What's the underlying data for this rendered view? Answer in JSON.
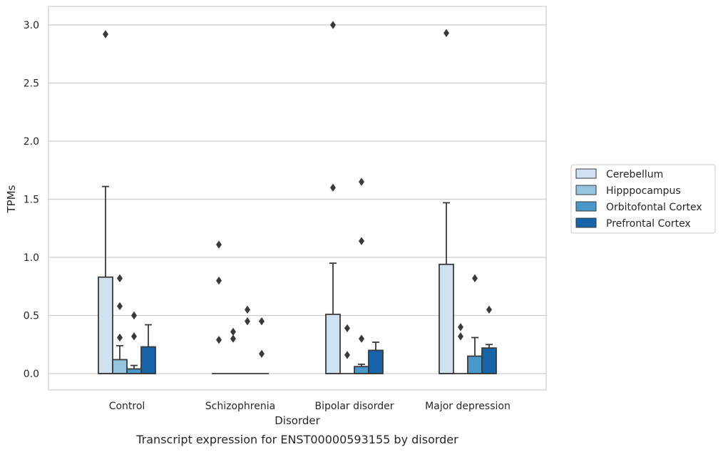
{
  "chart_data": {
    "type": "box",
    "title": "",
    "caption": "Transcript expression for ENST00000593155 by disorder",
    "xlabel": "Disorder",
    "ylabel": "TPMs",
    "ylim": [
      -0.15,
      3.15
    ],
    "yticks": [
      0.0,
      0.5,
      1.0,
      1.5,
      2.0,
      2.5,
      3.0
    ],
    "ytick_labels": [
      "0.0",
      "0.5",
      "1.0",
      "1.5",
      "2.0",
      "2.5",
      "3.0"
    ],
    "categories": [
      "Control",
      "Schizophrenia",
      "Bipolar disorder",
      "Major depression"
    ],
    "grid": "horizontal",
    "legend_position": "right",
    "series": [
      {
        "name": "Cerebellum",
        "color": "#d0e1f2",
        "boxes": [
          {
            "q1": 0.0,
            "median": 0.0,
            "q3": 0.83,
            "whisker_low": 0.0,
            "whisker_high": 1.61,
            "outliers": [
              2.92
            ]
          },
          {
            "q1": 0.0,
            "median": 0.0,
            "q3": 0.0,
            "whisker_low": 0.0,
            "whisker_high": 0.0,
            "outliers": [
              0.29,
              0.8,
              1.11
            ]
          },
          {
            "q1": 0.0,
            "median": 0.0,
            "q3": 0.51,
            "whisker_low": 0.0,
            "whisker_high": 0.95,
            "outliers": [
              1.6,
              3.0
            ]
          },
          {
            "q1": 0.0,
            "median": 0.0,
            "q3": 0.94,
            "whisker_low": 0.0,
            "whisker_high": 1.47,
            "outliers": [
              2.93
            ]
          }
        ]
      },
      {
        "name": "Hipppocampus",
        "color": "#94c4df",
        "boxes": [
          {
            "q1": 0.0,
            "median": 0.0,
            "q3": 0.12,
            "whisker_low": 0.0,
            "whisker_high": 0.24,
            "outliers": [
              0.31,
              0.58,
              0.82
            ]
          },
          {
            "q1": 0.0,
            "median": 0.0,
            "q3": 0.0,
            "whisker_low": 0.0,
            "whisker_high": 0.0,
            "outliers": [
              0.3,
              0.36
            ]
          },
          {
            "q1": 0.0,
            "median": 0.0,
            "q3": 0.0,
            "whisker_low": 0.0,
            "whisker_high": 0.0,
            "outliers": [
              0.16,
              0.39
            ]
          },
          {
            "q1": 0.0,
            "median": 0.0,
            "q3": 0.0,
            "whisker_low": 0.0,
            "whisker_high": 0.0,
            "outliers": [
              0.32,
              0.4
            ]
          }
        ]
      },
      {
        "name": "Orbitofontal Cortex",
        "color": "#4a98c9",
        "boxes": [
          {
            "q1": 0.0,
            "median": 0.0,
            "q3": 0.04,
            "whisker_low": 0.0,
            "whisker_high": 0.07,
            "outliers": [
              0.32,
              0.5
            ]
          },
          {
            "q1": 0.0,
            "median": 0.0,
            "q3": 0.0,
            "whisker_low": 0.0,
            "whisker_high": 0.0,
            "outliers": [
              0.45,
              0.55
            ]
          },
          {
            "q1": 0.0,
            "median": 0.0,
            "q3": 0.06,
            "whisker_low": 0.0,
            "whisker_high": 0.08,
            "outliers": [
              0.3,
              1.14,
              1.65
            ]
          },
          {
            "q1": 0.0,
            "median": 0.0,
            "q3": 0.15,
            "whisker_low": 0.0,
            "whisker_high": 0.31,
            "outliers": [
              0.82
            ]
          }
        ]
      },
      {
        "name": "Prefrontal Cortex",
        "color": "#1764ab",
        "boxes": [
          {
            "q1": 0.0,
            "median": 0.0,
            "q3": 0.23,
            "whisker_low": 0.0,
            "whisker_high": 0.42,
            "outliers": []
          },
          {
            "q1": 0.0,
            "median": 0.0,
            "q3": 0.0,
            "whisker_low": 0.0,
            "whisker_high": 0.0,
            "outliers": [
              0.17,
              0.45
            ]
          },
          {
            "q1": 0.0,
            "median": 0.0,
            "q3": 0.2,
            "whisker_low": 0.0,
            "whisker_high": 0.27,
            "outliers": []
          },
          {
            "q1": 0.0,
            "median": 0.0,
            "q3": 0.22,
            "whisker_low": 0.0,
            "whisker_high": 0.25,
            "outliers": [
              0.55
            ]
          }
        ]
      }
    ]
  }
}
